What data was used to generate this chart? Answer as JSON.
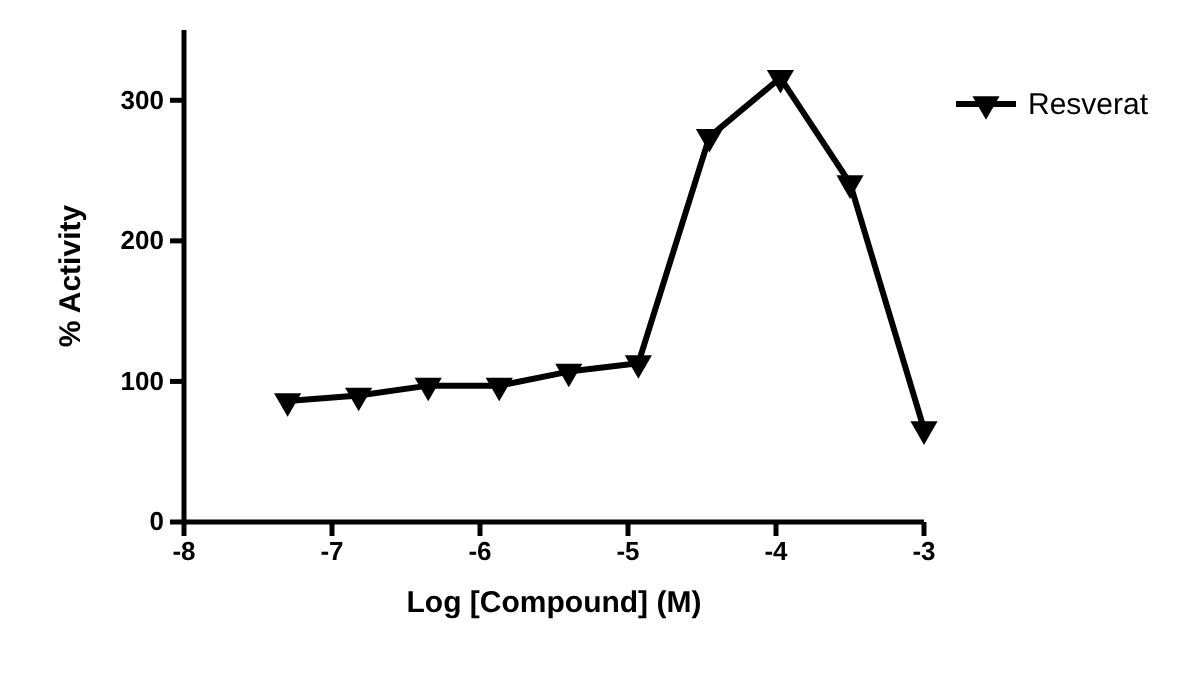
{
  "chart_data": {
    "type": "line",
    "xlabel": "Log [Compound] (M)",
    "ylabel": "% Activity",
    "xlim": [
      -8,
      -3
    ],
    "xticks": [
      -8,
      -7,
      -6,
      -5,
      -4,
      -3
    ],
    "ylim": [
      0,
      350
    ],
    "yticks": [
      0,
      100,
      200,
      300
    ],
    "x": [
      -7.3,
      -6.82,
      -6.35,
      -5.87,
      -5.4,
      -4.93,
      -4.45,
      -3.97,
      -3.5,
      -3.0
    ],
    "series": [
      {
        "name": "Resverat",
        "color": "#000000",
        "values": [
          86,
          90,
          97,
          97,
          107,
          113,
          274,
          316,
          241,
          66
        ]
      }
    ],
    "marker": "triangle",
    "line_style": "solid",
    "legend": "top right",
    "grid": false
  }
}
